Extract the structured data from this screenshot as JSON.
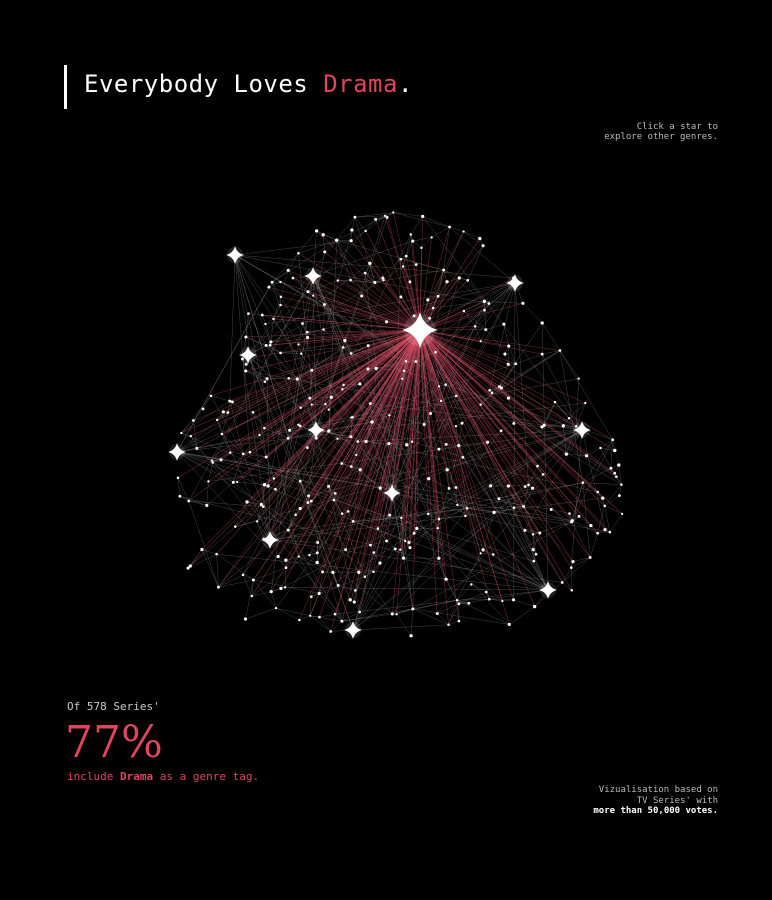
{
  "header": {
    "title": {
      "prefix": "Everybody Loves ",
      "genre": "Drama",
      "suffix": "."
    },
    "hint": [
      "Click a star to",
      "explore other genres."
    ]
  },
  "stats": {
    "intro": "Of 578 Series'",
    "percent": "77%",
    "caption": {
      "prefix": "include ",
      "genre": "Drama",
      "suffix": " as a genre tag."
    }
  },
  "footnote": [
    "Vizualisation based on",
    "TV Series' with",
    "more than 50,000 votes."
  ]
}
